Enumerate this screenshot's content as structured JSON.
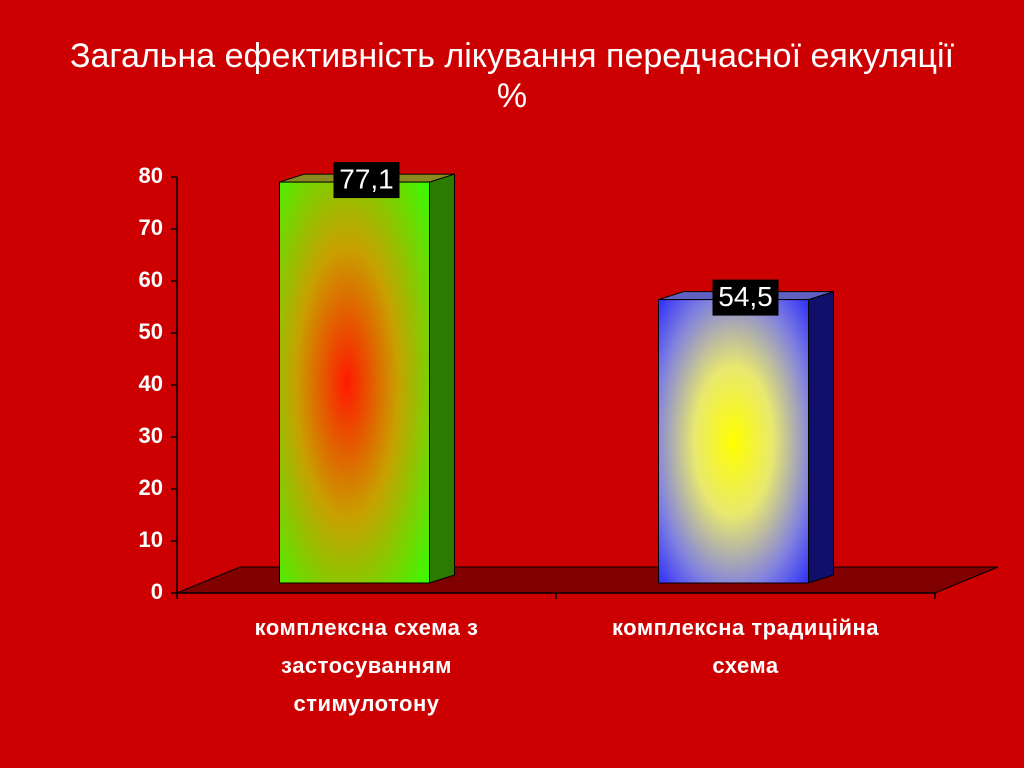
{
  "chart_data": {
    "type": "bar3d",
    "title": "Загальна ефективність лікування передчасної еякуляції",
    "unit": "%",
    "categories": [
      [
        "комплексна схема з",
        "застосуванням",
        "стимулотону"
      ],
      [
        "комплексна традиційна",
        "схема"
      ]
    ],
    "values": [
      77.1,
      54.5
    ],
    "value_labels": [
      "77,1",
      "54,5"
    ],
    "colors": [
      "#33ff00",
      "#1a1aff"
    ],
    "ylim": [
      0,
      80
    ],
    "yticks": [
      0,
      10,
      20,
      30,
      40,
      50,
      60,
      70,
      80
    ]
  }
}
